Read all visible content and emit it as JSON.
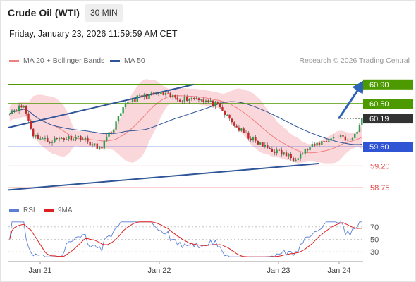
{
  "header": {
    "title": "Crude Oil (WTI)",
    "timeframe": "30 MIN",
    "datetime": "Friday, January 23, 2026 11:59:59 AM CET"
  },
  "legend": {
    "items": [
      {
        "label": "MA 20 + Bollinger Bands",
        "color": "#f08080"
      },
      {
        "label": "MA 50",
        "color": "#2e5597"
      }
    ],
    "credit": "Research © 2026 Trading Central"
  },
  "chart_data": [
    {
      "type": "candlestick",
      "title": "Crude Oil (WTI)",
      "timeframe": "30 MIN",
      "x_ticks": [
        "Jan 21",
        "Jan 22",
        "Jan 23",
        "Jan 24"
      ],
      "ylim": [
        58.5,
        61.25
      ],
      "last_price": 60.19,
      "price_levels": [
        {
          "value": 60.9,
          "label": "60.90",
          "kind": "resistance",
          "color": "#4c9a00"
        },
        {
          "value": 60.5,
          "label": "60.50",
          "kind": "resistance",
          "color": "#4c9a00"
        },
        {
          "value": 60.19,
          "label": "60.19",
          "kind": "last",
          "color": "#333333"
        },
        {
          "value": 59.6,
          "label": "59.60",
          "kind": "pivot",
          "color": "#2f55d4"
        },
        {
          "value": 59.2,
          "label": "59.20",
          "kind": "support",
          "color": "#e04040"
        },
        {
          "value": 58.75,
          "label": "58.75",
          "kind": "support",
          "color": "#e04040"
        }
      ],
      "bias_arrow": {
        "from": 60.2,
        "to": 60.88,
        "direction": "up"
      },
      "candle_count": 150,
      "series": [
        {
          "name": "MA 20 + Bollinger Bands",
          "style": "band",
          "color": "#f08080"
        },
        {
          "name": "MA 50",
          "style": "line",
          "color": "#2e5597"
        }
      ]
    },
    {
      "type": "line",
      "title": "RSI",
      "y_ticks": [
        70,
        50,
        30
      ],
      "ylim": [
        20,
        80
      ],
      "series": [
        {
          "name": "RSI",
          "color": "#5b7fd6"
        },
        {
          "name": "9MA",
          "color": "#e02020"
        }
      ]
    }
  ],
  "rsi_legend": {
    "rsi_label": "RSI",
    "ma_label": "9MA"
  }
}
